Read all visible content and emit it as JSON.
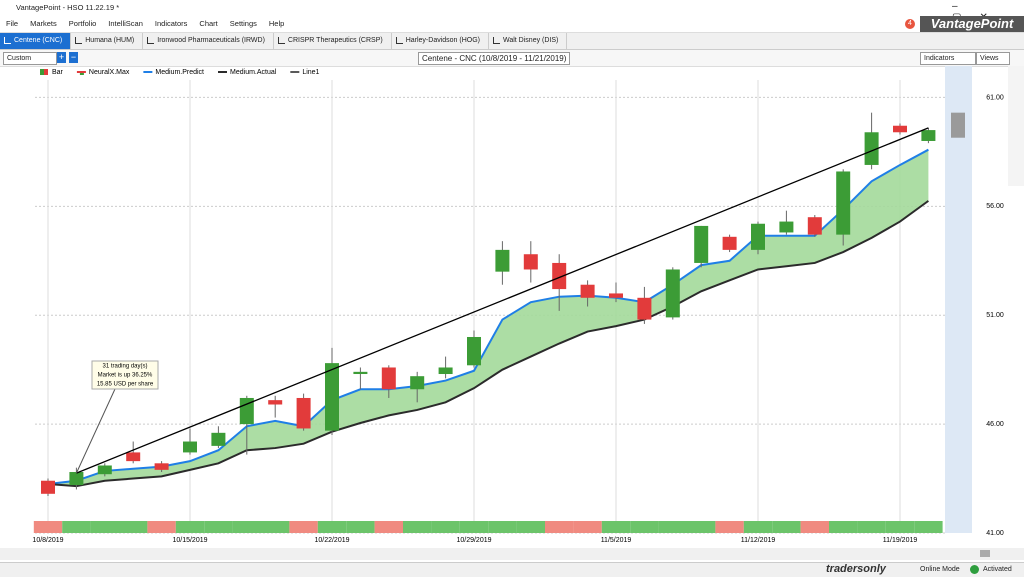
{
  "window": {
    "title": "VantagePoint - HSO 11.22.19 *",
    "logo": "VantagePoint",
    "notifications": "4"
  },
  "menu": [
    "File",
    "Markets",
    "Portfolio",
    "IntelliScan",
    "Indicators",
    "Chart",
    "Settings",
    "Help"
  ],
  "tabs": [
    "Centene (CNC)",
    "Humana (HUM)",
    "Ironwood Pharmaceuticals (IRWD)",
    "CRISPR Therapeutics (CRSP)",
    "Harley-Davidson (HOG)",
    "Walt Disney (DIS)"
  ],
  "toolbar": {
    "view": "Custom",
    "chart_title": "Centene - CNC (10/8/2019 - 11/21/2019)",
    "indicators": "Indicators",
    "views": "Views"
  },
  "status": {
    "brand": "tradersonly",
    "mode": "Online Mode",
    "activation": "Activated"
  },
  "chart_data": {
    "type": "candlestick",
    "bar_name": "Bar",
    "up_color": "#3c9c36",
    "down_color": "#e23b3b",
    "x": [
      "10/8/2019",
      "10/9/2019",
      "10/10/2019",
      "10/11/2019",
      "10/14/2019",
      "10/15/2019",
      "10/16/2019",
      "10/17/2019",
      "10/18/2019",
      "10/21/2019",
      "10/22/2019",
      "10/23/2019",
      "10/24/2019",
      "10/25/2019",
      "10/28/2019",
      "10/29/2019",
      "10/30/2019",
      "10/31/2019",
      "11/1/2019",
      "11/4/2019",
      "11/5/2019",
      "11/6/2019",
      "11/7/2019",
      "11/8/2019",
      "11/11/2019",
      "11/12/2019",
      "11/13/2019",
      "11/14/2019",
      "11/15/2019",
      "11/18/2019",
      "11/19/2019",
      "11/20/2019"
    ],
    "open": [
      43.4,
      43.2,
      43.7,
      44.7,
      44.2,
      44.7,
      45.0,
      46.0,
      47.1,
      47.2,
      45.7,
      48.3,
      48.6,
      47.6,
      48.3,
      48.7,
      53.0,
      53.8,
      53.4,
      52.4,
      52.0,
      51.8,
      50.9,
      53.4,
      54.6,
      54.0,
      54.8,
      55.5,
      54.7,
      57.9,
      59.7,
      59.0
    ],
    "high": [
      43.5,
      44.0,
      44.2,
      45.2,
      44.3,
      45.8,
      45.9,
      47.3,
      47.3,
      47.4,
      49.5,
      48.6,
      48.7,
      48.4,
      49.1,
      50.3,
      54.4,
      54.4,
      53.8,
      52.6,
      52.5,
      52.3,
      53.2,
      55.1,
      54.7,
      55.3,
      55.8,
      55.6,
      57.7,
      60.3,
      59.8,
      59.6
    ],
    "low": [
      42.7,
      43.0,
      43.6,
      44.2,
      43.8,
      44.6,
      44.9,
      44.6,
      46.3,
      45.7,
      45.5,
      47.6,
      47.2,
      47.0,
      48.1,
      48.6,
      52.4,
      52.5,
      51.2,
      51.4,
      51.6,
      50.6,
      50.8,
      53.2,
      53.9,
      53.8,
      54.7,
      54.6,
      54.2,
      57.7,
      59.3,
      58.9
    ],
    "close": [
      42.8,
      43.8,
      44.1,
      44.3,
      43.9,
      45.2,
      45.6,
      47.2,
      46.9,
      45.8,
      48.8,
      48.4,
      47.6,
      48.2,
      48.6,
      50.0,
      54.0,
      53.1,
      52.2,
      51.8,
      51.8,
      50.8,
      53.1,
      55.1,
      54.0,
      55.2,
      55.3,
      54.7,
      57.6,
      59.4,
      59.4,
      59.5
    ],
    "lines": [
      {
        "name": "Medium.Predict",
        "color": "#1f7fe6",
        "values": [
          43.25,
          43.4,
          43.85,
          43.95,
          44.05,
          44.3,
          44.8,
          45.9,
          46.15,
          45.9,
          47.1,
          47.6,
          47.6,
          47.75,
          48.0,
          48.45,
          50.8,
          51.6,
          51.85,
          51.9,
          51.8,
          51.6,
          52.4,
          53.3,
          53.5,
          54.65,
          54.65,
          54.65,
          55.85,
          57.15,
          57.9,
          58.6
        ]
      },
      {
        "name": "Medium.Actual",
        "color": "#2b2b2b",
        "values": [
          43.25,
          43.15,
          43.4,
          43.5,
          43.6,
          43.9,
          44.2,
          44.8,
          44.9,
          45.1,
          45.65,
          46.05,
          46.4,
          46.65,
          47.0,
          47.65,
          48.5,
          49.1,
          49.7,
          50.25,
          50.5,
          50.8,
          51.4,
          52.1,
          52.6,
          53.1,
          53.25,
          53.4,
          53.9,
          54.55,
          55.3,
          56.25
        ]
      }
    ],
    "band_color": "#a3d99a",
    "signal": {
      "name": "NeuralX.Max",
      "colors": [
        "#f08a80",
        "#6cc46a",
        "#6cc46a",
        "#6cc46a",
        "#f08a80",
        "#6cc46a",
        "#6cc46a",
        "#6cc46a",
        "#6cc46a",
        "#f08a80",
        "#6cc46a",
        "#6cc46a",
        "#f08a80",
        "#6cc46a",
        "#6cc46a",
        "#6cc46a",
        "#6cc46a",
        "#6cc46a",
        "#f08a80",
        "#f08a80",
        "#6cc46a",
        "#6cc46a",
        "#6cc46a",
        "#6cc46a",
        "#f08a80",
        "#6cc46a",
        "#6cc46a",
        "#f08a80",
        "#6cc46a",
        "#6cc46a",
        "#6cc46a",
        "#6cc46a"
      ]
    },
    "trendline": {
      "name": "Line1",
      "color": "#000000",
      "x": [
        "10/9/2019",
        "11/20/2019"
      ],
      "values": [
        43.75,
        59.6
      ]
    },
    "annotation": {
      "lines": [
        "31 trading day(s)",
        "Market is up 36.25%",
        "15.85 USD per share"
      ],
      "x": "10/9/2019",
      "value": 43.75
    },
    "forecast": {
      "low": 59.15,
      "high": 60.3,
      "color": "#9a9a9a"
    },
    "xticks": [
      "10/8/2019",
      "10/15/2019",
      "10/22/2019",
      "10/29/2019",
      "11/5/2019",
      "11/12/2019",
      "11/19/2019"
    ],
    "ylim": [
      41,
      61.8
    ],
    "yticks": [
      {
        "value": 41,
        "label": "41.00"
      },
      {
        "value": 46,
        "label": "46.00"
      },
      {
        "value": 51,
        "label": "51.00"
      },
      {
        "value": 56,
        "label": "56.00"
      },
      {
        "value": 61,
        "label": "61.00"
      }
    ],
    "grid": true
  }
}
